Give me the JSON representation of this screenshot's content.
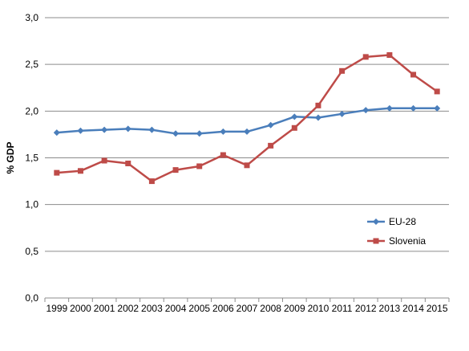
{
  "chart_data": {
    "type": "line",
    "title": "",
    "xlabel": "",
    "ylabel": "% GDP",
    "categories": [
      "1999",
      "2000",
      "2001",
      "2002",
      "2003",
      "2004",
      "2005",
      "2006",
      "2007",
      "2008",
      "2009",
      "2010",
      "2011",
      "2012",
      "2013",
      "2014",
      "2015"
    ],
    "ylim": [
      0,
      3.0
    ],
    "y_ticks": [
      "0,0",
      "0,5",
      "1,0",
      "1,5",
      "2,0",
      "2,5",
      "3,0"
    ],
    "y_tick_values": [
      0,
      0.5,
      1.0,
      1.5,
      2.0,
      2.5,
      3.0
    ],
    "grid": "horizontal",
    "legend_position": "right",
    "series": [
      {
        "name": "EU-28",
        "color": "#4a7ebb",
        "marker": "diamond",
        "values": [
          1.77,
          1.79,
          1.8,
          1.81,
          1.8,
          1.76,
          1.76,
          1.78,
          1.78,
          1.85,
          1.94,
          1.93,
          1.97,
          2.01,
          2.03,
          2.03,
          2.03
        ]
      },
      {
        "name": "Slovenia",
        "color": "#be4b48",
        "marker": "square",
        "values": [
          1.34,
          1.36,
          1.47,
          1.44,
          1.25,
          1.37,
          1.41,
          1.53,
          1.42,
          1.63,
          1.82,
          2.06,
          2.43,
          2.58,
          2.6,
          2.39,
          2.21
        ]
      }
    ]
  }
}
